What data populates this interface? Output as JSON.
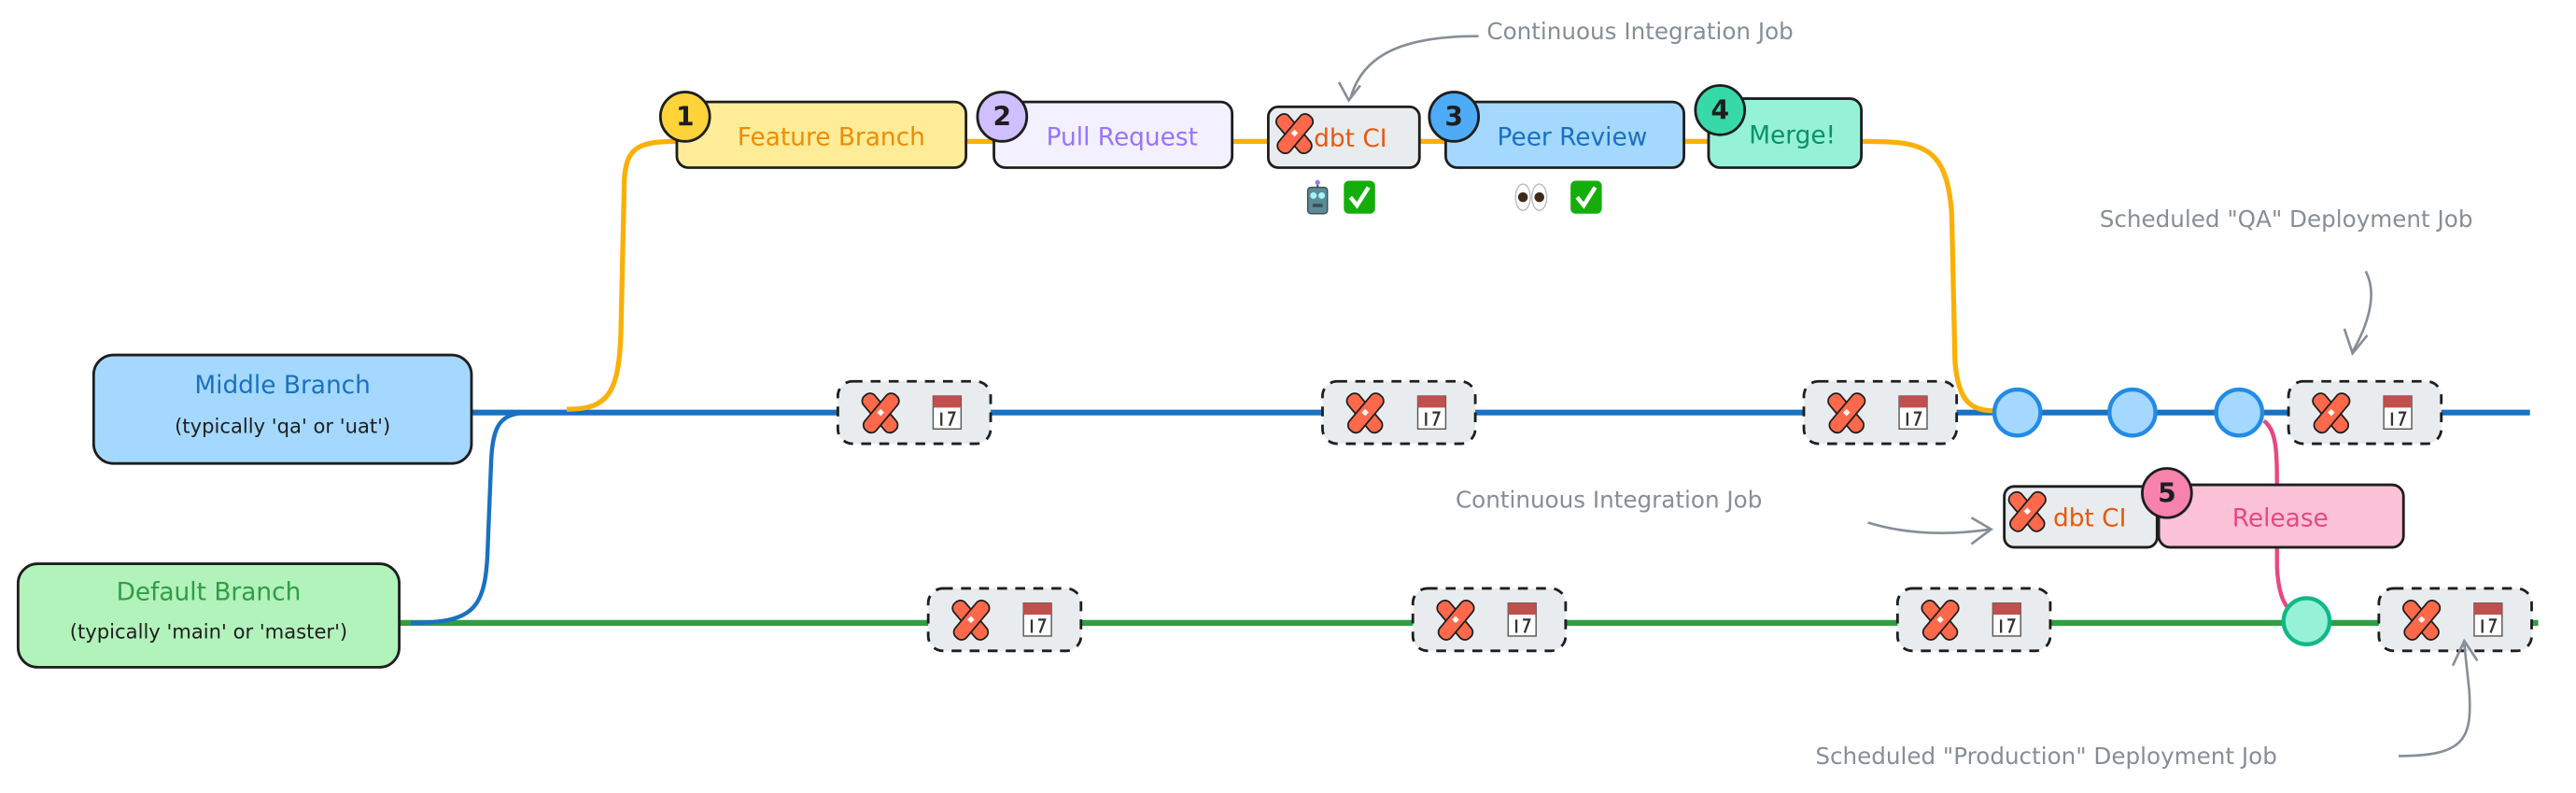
{
  "colors": {
    "feature_line": "#fab005",
    "middle_line": "#1971c2",
    "default_line": "#2f9e44",
    "release_line": "#e64980",
    "dbt_logo": "#ff694b",
    "annotation": "#868e96"
  },
  "branches": {
    "middle": {
      "title": "Middle Branch",
      "subtitle": "(typically 'qa' or 'uat')"
    },
    "default": {
      "title": "Default Branch",
      "subtitle": "(typically 'main' or 'master')"
    }
  },
  "steps": [
    {
      "badge": "1",
      "label": "Feature Branch"
    },
    {
      "badge": "2",
      "label": "Pull Request"
    },
    {
      "badge": "",
      "label": "dbt CI",
      "icon": "dbt-logo-icon"
    },
    {
      "badge": "3",
      "label": "Peer Review"
    },
    {
      "badge": "4",
      "label": "Merge!"
    },
    {
      "badge": "5",
      "label": "Release"
    }
  ],
  "release_ci": {
    "label": "dbt CI",
    "icon": "dbt-logo-icon"
  },
  "status_icons": {
    "ci": [
      "robot-icon",
      "check-mark-icon"
    ],
    "review": [
      "eyes-icon",
      "check-mark-icon"
    ]
  },
  "job_icons": [
    "dbt-logo-icon",
    "calendar-icon"
  ],
  "annotations": {
    "ci_top": "Continuous Integration Job",
    "ci_release": "Continuous Integration Job",
    "qa_deploy": "Scheduled \"QA\" Deployment Job",
    "prod_deploy": "Scheduled \"Production\" Deployment Job"
  }
}
